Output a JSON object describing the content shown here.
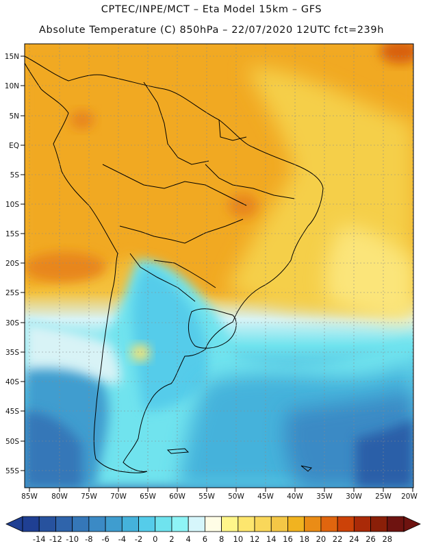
{
  "title_line1": "CPTEC/INPE/MCT –  Eta Model 15km – GFS",
  "title_line2": "Absolute Temperature (C) 850hPa – 22/07/2020 12UTC fct=239h",
  "lat_labels": [
    "15N",
    "10N",
    "5N",
    "EQ",
    "5S",
    "10S",
    "15S",
    "20S",
    "25S",
    "30S",
    "35S",
    "40S",
    "45S",
    "50S",
    "55S"
  ],
  "lon_labels": [
    "85W",
    "80W",
    "75W",
    "70W",
    "65W",
    "60W",
    "55W",
    "50W",
    "45W",
    "40W",
    "35W",
    "30W",
    "25W",
    "20W"
  ],
  "colorbar": {
    "ticks": [
      "-14",
      "-12",
      "-10",
      "-8",
      "-6",
      "-4",
      "-2",
      "0",
      "2",
      "4",
      "6",
      "8",
      "10",
      "12",
      "14",
      "16",
      "18",
      "20",
      "22",
      "24",
      "26",
      "28"
    ],
    "colors": [
      "#1f3f93",
      "#27529e",
      "#2f64ab",
      "#3577b8",
      "#3b8ac5",
      "#3f9dcf",
      "#45b2db",
      "#55ccea",
      "#6fe3ee",
      "#8ef4f6",
      "#d6f6fb",
      "#fffde6",
      "#fff68a",
      "#fde66e",
      "#f9d75a",
      "#f4c746",
      "#f1b320",
      "#ea8c16",
      "#e0650e",
      "#cc4208",
      "#aa2a08",
      "#8a1f08",
      "#6e1310"
    ]
  },
  "colors": {
    "tropics_orange": "#f1a924",
    "subtropic_yellow": "#f6d252",
    "cold_blue": "#3a8fc8",
    "deep_blue": "#23489a",
    "cyan": "#6ee3ee",
    "border": "#000000"
  }
}
